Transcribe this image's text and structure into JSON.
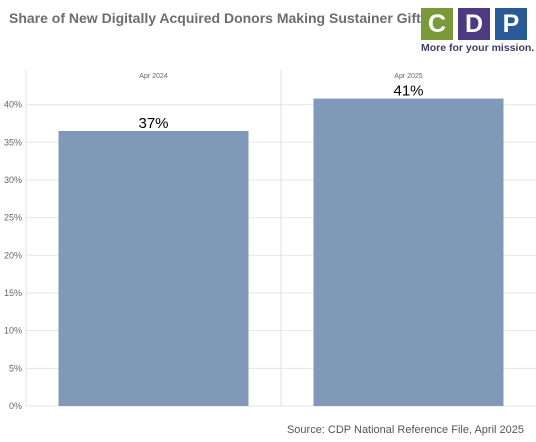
{
  "title": "Share of New Digitally Acquired Donors Making Sustainer Gifts",
  "logo": {
    "letters": [
      "C",
      "D",
      "P"
    ],
    "colors": [
      "#7a9a3a",
      "#4d3a80",
      "#2a5a96"
    ],
    "tagline": "More for your mission."
  },
  "source": "Source: CDP National Reference File, April 2025",
  "chart_data": {
    "type": "bar",
    "title": "Share of New Digitally Acquired Donors Making Sustainer Gifts",
    "categories": [
      "Apr 2024",
      "Apr 2025"
    ],
    "values": [
      36.5,
      40.8
    ],
    "data_labels": [
      "37%",
      "41%"
    ],
    "ylim": [
      0,
      43
    ],
    "yticks": [
      0,
      5,
      10,
      15,
      20,
      25,
      30,
      35,
      40
    ],
    "ytick_labels": [
      "0%",
      "5%",
      "10%",
      "15%",
      "20%",
      "25%",
      "30%",
      "35%",
      "40%"
    ],
    "xlabel": "",
    "ylabel": "",
    "grid": true,
    "bar_color": "#8199b8"
  }
}
